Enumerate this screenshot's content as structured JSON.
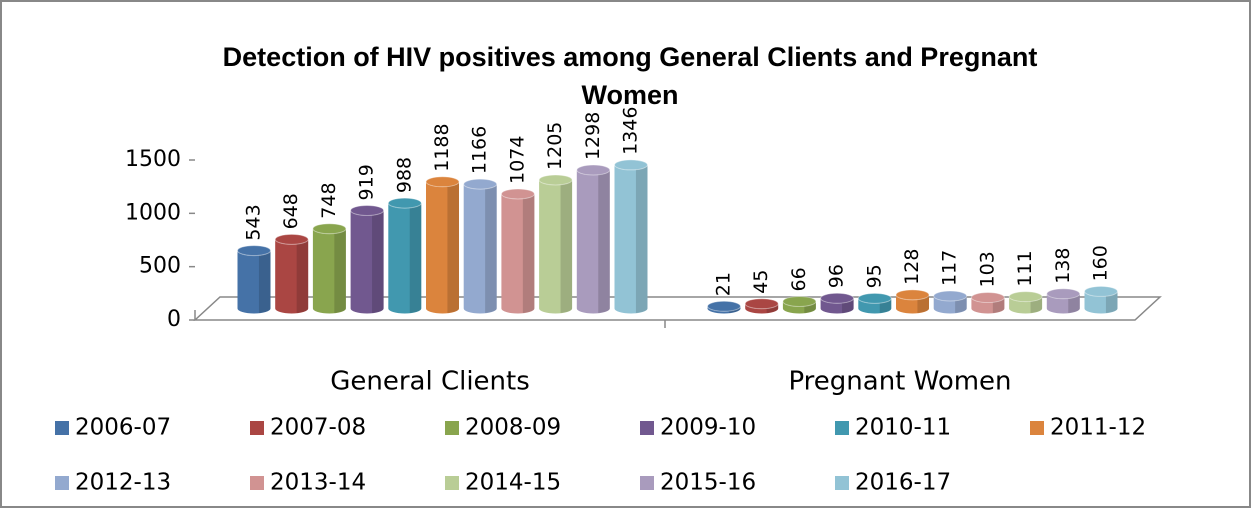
{
  "chart_data": {
    "type": "bar3d",
    "title": "Detection of HIV positives among General Clients and Pregnant Women",
    "categories": [
      "General Clients",
      "Pregnant Women"
    ],
    "series": [
      {
        "name": "2006-07",
        "color": "#4572a7",
        "values": [
          543,
          21
        ]
      },
      {
        "name": "2007-08",
        "color": "#aa4643",
        "values": [
          648,
          45
        ]
      },
      {
        "name": "2008-09",
        "color": "#89a54e",
        "values": [
          748,
          66
        ]
      },
      {
        "name": "2009-10",
        "color": "#71588f",
        "values": [
          919,
          96
        ]
      },
      {
        "name": "2010-11",
        "color": "#4198af",
        "values": [
          988,
          95
        ]
      },
      {
        "name": "2011-12",
        "color": "#db843d",
        "values": [
          1188,
          128
        ]
      },
      {
        "name": "2012-13",
        "color": "#93a9cf",
        "values": [
          1166,
          117
        ]
      },
      {
        "name": "2013-14",
        "color": "#d19392",
        "values": [
          1074,
          103
        ]
      },
      {
        "name": "2014-15",
        "color": "#b9cd96",
        "values": [
          1205,
          111
        ]
      },
      {
        "name": "2015-16",
        "color": "#a99bbd",
        "values": [
          1298,
          138
        ]
      },
      {
        "name": "2016-17",
        "color": "#92c3d5",
        "values": [
          1346,
          160
        ]
      }
    ],
    "ylim": [
      0,
      1500
    ],
    "yticks": [
      0,
      500,
      1000,
      1500
    ],
    "grid": false,
    "legend": "bottom"
  }
}
